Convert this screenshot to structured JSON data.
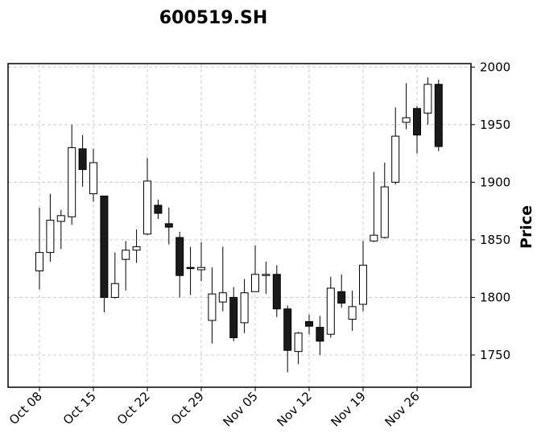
{
  "chart_data": {
    "type": "candlestick",
    "title": "600519.SH",
    "xlabel": "",
    "ylabel": "Price",
    "ylim": [
      1722,
      2003
    ],
    "y_ticks": [
      1750,
      1800,
      1850,
      1900,
      1950,
      2000
    ],
    "x_ticks": [
      {
        "label": "Oct 08",
        "index": 0
      },
      {
        "label": "Oct 15",
        "index": 5
      },
      {
        "label": "Oct 22",
        "index": 10
      },
      {
        "label": "Oct 29",
        "index": 15
      },
      {
        "label": "Nov 05",
        "index": 20
      },
      {
        "label": "Nov 12",
        "index": 25
      },
      {
        "label": "Nov 19",
        "index": 30
      },
      {
        "label": "Nov 26",
        "index": 35
      }
    ],
    "grid": true,
    "y_axis_side": "right",
    "colors": {
      "up": "#ffffff",
      "down": "#1a1a1a",
      "edge": "#000000",
      "grid": "#cccccc"
    },
    "candles": [
      {
        "open": 1823,
        "high": 1878,
        "low": 1807,
        "close": 1839
      },
      {
        "open": 1839,
        "high": 1890,
        "low": 1831,
        "close": 1867
      },
      {
        "open": 1866,
        "high": 1876,
        "low": 1842,
        "close": 1871
      },
      {
        "open": 1870,
        "high": 1950,
        "low": 1863,
        "close": 1930
      },
      {
        "open": 1929,
        "high": 1941,
        "low": 1896,
        "close": 1911
      },
      {
        "open": 1890,
        "high": 1929,
        "low": 1883,
        "close": 1917
      },
      {
        "open": 1888,
        "high": 1888,
        "low": 1787,
        "close": 1800
      },
      {
        "open": 1800,
        "high": 1839,
        "low": 1799,
        "close": 1812
      },
      {
        "open": 1833,
        "high": 1849,
        "low": 1806,
        "close": 1841
      },
      {
        "open": 1841,
        "high": 1859,
        "low": 1830,
        "close": 1844
      },
      {
        "open": 1855,
        "high": 1921,
        "low": 1854,
        "close": 1901
      },
      {
        "open": 1880,
        "high": 1885,
        "low": 1868,
        "close": 1873
      },
      {
        "open": 1864,
        "high": 1878,
        "low": 1846,
        "close": 1861
      },
      {
        "open": 1852,
        "high": 1857,
        "low": 1800,
        "close": 1819
      },
      {
        "open": 1826,
        "high": 1844,
        "low": 1802,
        "close": 1825
      },
      {
        "open": 1824,
        "high": 1848,
        "low": 1814,
        "close": 1826
      },
      {
        "open": 1780,
        "high": 1826,
        "low": 1760,
        "close": 1803
      },
      {
        "open": 1796,
        "high": 1844,
        "low": 1788,
        "close": 1804
      },
      {
        "open": 1800,
        "high": 1809,
        "low": 1762,
        "close": 1765
      },
      {
        "open": 1778,
        "high": 1816,
        "low": 1769,
        "close": 1804
      },
      {
        "open": 1805,
        "high": 1845,
        "low": 1805,
        "close": 1820
      },
      {
        "open": 1819,
        "high": 1831,
        "low": 1803,
        "close": 1820
      },
      {
        "open": 1820,
        "high": 1828,
        "low": 1783,
        "close": 1790
      },
      {
        "open": 1790,
        "high": 1793,
        "low": 1735,
        "close": 1754
      },
      {
        "open": 1753,
        "high": 1770,
        "low": 1742,
        "close": 1769
      },
      {
        "open": 1779,
        "high": 1785,
        "low": 1768,
        "close": 1775
      },
      {
        "open": 1774,
        "high": 1784,
        "low": 1750,
        "close": 1762
      },
      {
        "open": 1768,
        "high": 1818,
        "low": 1765,
        "close": 1808
      },
      {
        "open": 1805,
        "high": 1820,
        "low": 1791,
        "close": 1795
      },
      {
        "open": 1781,
        "high": 1806,
        "low": 1771,
        "close": 1792
      },
      {
        "open": 1794,
        "high": 1849,
        "low": 1788,
        "close": 1828
      },
      {
        "open": 1849,
        "high": 1909,
        "low": 1848,
        "close": 1854
      },
      {
        "open": 1852,
        "high": 1917,
        "low": 1851,
        "close": 1896
      },
      {
        "open": 1900,
        "high": 1965,
        "low": 1898,
        "close": 1940
      },
      {
        "open": 1952,
        "high": 1986,
        "low": 1946,
        "close": 1956
      },
      {
        "open": 1964,
        "high": 1966,
        "low": 1925,
        "close": 1941
      },
      {
        "open": 1960,
        "high": 1991,
        "low": 1950,
        "close": 1985
      },
      {
        "open": 1985,
        "high": 1989,
        "low": 1927,
        "close": 1931
      }
    ]
  }
}
